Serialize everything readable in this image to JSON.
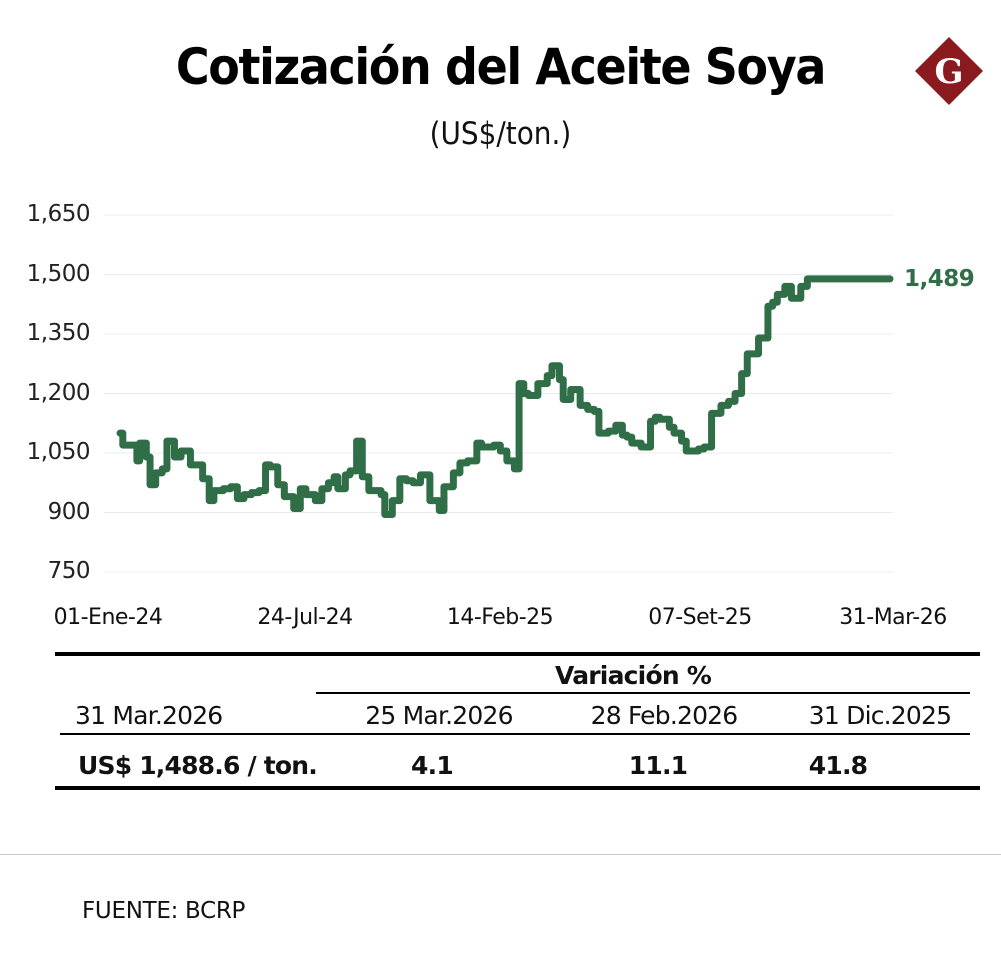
{
  "header": {
    "title": "Cotización del Aceite Soya",
    "subtitle": "(US$/ton.)",
    "logo_letter": "G",
    "logo_color": "#8b1a1f"
  },
  "chart_data": {
    "type": "line",
    "title": "Cotización del Aceite Soya",
    "subtitle": "(US$/ton.)",
    "xlabel": "",
    "ylabel": "US$/ton.",
    "ylim": [
      750,
      1650
    ],
    "yticks": [
      "1,650",
      "1,500",
      "1,350",
      "1,200",
      "1,050",
      "900",
      "750"
    ],
    "ytick_values": [
      1650,
      1500,
      1350,
      1200,
      1050,
      900,
      750
    ],
    "xticks": [
      "01-Ene-24",
      "24-Jul-24",
      "14-Feb-25",
      "07-Set-25",
      "31-Mar-26"
    ],
    "xtick_days": [
      0,
      205,
      410,
      615,
      820
    ],
    "grid": true,
    "legend": "none",
    "line_color": "#2f6e47",
    "end_label": "1,489",
    "series": [
      {
        "name": "Aceite Soya (US$/ton.)",
        "x_days": [
          0,
          3,
          10,
          18,
          21,
          28,
          32,
          38,
          45,
          50,
          58,
          62,
          65,
          75,
          88,
          95,
          100,
          110,
          118,
          125,
          132,
          140,
          148,
          155,
          160,
          168,
          175,
          185,
          192,
          198,
          208,
          215,
          222,
          228,
          232,
          240,
          245,
          252,
          258,
          265,
          270,
          278,
          282,
          290,
          298,
          305,
          312,
          320,
          330,
          340,
          345,
          355,
          362,
          370,
          380,
          385,
          390,
          398,
          405,
          412,
          420,
          425,
          430,
          435,
          445,
          455,
          460,
          468,
          472,
          480,
          490,
          498,
          505,
          510,
          520,
          528,
          535,
          540,
          545,
          555,
          565,
          570,
          575,
          585,
          590,
          598,
          603,
          610,
          616,
          622,
          630,
          640,
          648,
          655,
          662,
          668,
          680,
          690,
          695,
          700,
          708,
          715,
          725,
          732,
          740,
          745,
          750,
          755,
          760,
          765,
          770,
          775,
          780,
          785,
          790,
          795,
          800,
          805,
          808,
          812,
          815,
          818,
          820
        ],
        "values": [
          1100,
          1070,
          1070,
          1030,
          1075,
          1040,
          970,
          1000,
          1010,
          1080,
          1040,
          1040,
          1055,
          1020,
          985,
          930,
          955,
          960,
          965,
          935,
          945,
          950,
          955,
          1020,
          1015,
          970,
          940,
          910,
          960,
          945,
          930,
          960,
          975,
          990,
          960,
          995,
          1005,
          1080,
          990,
          955,
          955,
          945,
          895,
          930,
          985,
          980,
          975,
          995,
          930,
          905,
          965,
          1000,
          1025,
          1030,
          1075,
          1065,
          1065,
          1070,
          1055,
          1030,
          1010,
          1225,
          1200,
          1195,
          1225,
          1245,
          1270,
          1235,
          1185,
          1210,
          1170,
          1160,
          1155,
          1100,
          1105,
          1120,
          1095,
          1090,
          1075,
          1065,
          1130,
          1140,
          1135,
          1115,
          1100,
          1080,
          1055,
          1055,
          1060,
          1065,
          1150,
          1170,
          1180,
          1200,
          1250,
          1300,
          1340,
          1420,
          1430,
          1450,
          1470,
          1440,
          1470,
          1489,
          1489,
          1489,
          1489,
          1489,
          1489,
          1489,
          1489,
          1489,
          1489,
          1489,
          1489,
          1489,
          1489,
          1489,
          1489,
          1489,
          1489,
          1489,
          1489
        ]
      }
    ]
  },
  "table": {
    "variation_header": "Variación %",
    "current_date": "31 Mar.2026",
    "compare_dates": [
      "25 Mar.2026",
      "28 Feb.2026",
      "31 Dic.2025"
    ],
    "current_value": "US$ 1,488.6 / ton.",
    "variations": [
      "4.1",
      "11.1",
      "41.8"
    ]
  },
  "footer": {
    "source": "FUENTE: BCRP"
  }
}
